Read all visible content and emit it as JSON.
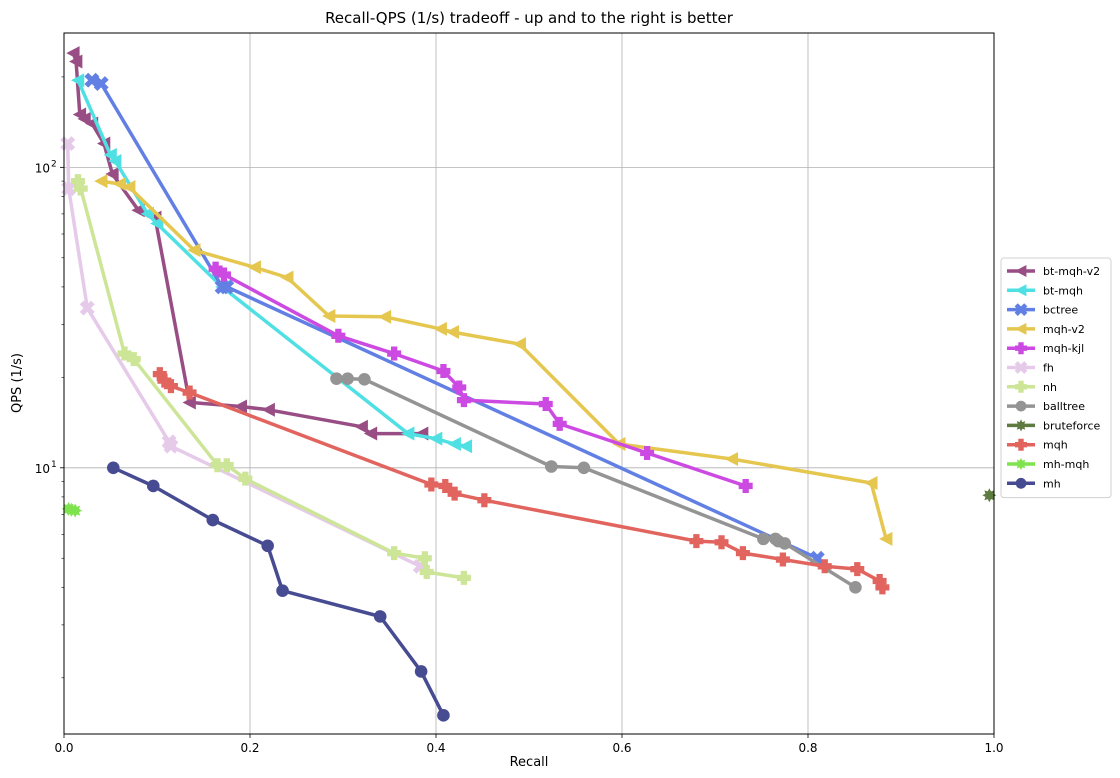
{
  "chart_data": {
    "type": "line",
    "title": "Recall-QPS (1/s) tradeoff - up and to the right is better",
    "xlabel": "Recall",
    "ylabel": "QPS (1/s)",
    "xlim": [
      0.0,
      1.0
    ],
    "ylim": [
      1.3,
      280
    ],
    "yscale": "log",
    "grid": true,
    "legend_position": "right",
    "x_ticks": [
      {
        "value": 0.0,
        "label": "0.0"
      },
      {
        "value": 0.2,
        "label": "0.2"
      },
      {
        "value": 0.4,
        "label": "0.4"
      },
      {
        "value": 0.6,
        "label": "0.6"
      },
      {
        "value": 0.8,
        "label": "0.8"
      },
      {
        "value": 1.0,
        "label": "1.0"
      }
    ],
    "y_ticks": [
      {
        "value": 10,
        "label": "10",
        "sup": "1"
      },
      {
        "value": 100,
        "label": "10",
        "sup": "2"
      }
    ],
    "series": [
      {
        "name": "bt-mqh-v2",
        "color": "#984e84",
        "marker": "triangle-left",
        "x": [
          0.01,
          0.013,
          0.017,
          0.022,
          0.03,
          0.043,
          0.052,
          0.08,
          0.09,
          0.098,
          0.135,
          0.19,
          0.22,
          0.32,
          0.33,
          0.385
        ],
        "y": [
          240,
          225,
          150,
          145,
          140,
          120,
          95,
          72,
          70,
          68,
          16.5,
          16.0,
          15.6,
          13.7,
          13.0,
          13.0
        ]
      },
      {
        "name": "bt-mqh",
        "color": "#4fe0e3",
        "marker": "triangle-left",
        "x": [
          0.015,
          0.05,
          0.055,
          0.09,
          0.1,
          0.17,
          0.37,
          0.4,
          0.42,
          0.432
        ],
        "y": [
          195,
          110,
          105,
          70,
          65,
          40,
          13.0,
          12.5,
          12.0,
          11.8
        ]
      },
      {
        "name": "bctree",
        "color": "#6280e4",
        "marker": "x",
        "x": [
          0.03,
          0.04,
          0.17,
          0.175,
          0.81
        ],
        "y": [
          195,
          190,
          40,
          40,
          5.0
        ]
      },
      {
        "name": "mqh-v2",
        "color": "#e5c750",
        "marker": "triangle-left",
        "x": [
          0.04,
          0.06,
          0.07,
          0.14,
          0.205,
          0.24,
          0.285,
          0.345,
          0.405,
          0.418,
          0.49,
          0.597,
          0.718,
          0.868,
          0.884
        ],
        "y": [
          90,
          88,
          86,
          53,
          46.5,
          43,
          32,
          31.8,
          29,
          28.3,
          25.8,
          12.0,
          10.7,
          8.9,
          5.8
        ]
      },
      {
        "name": "mqh-kjl",
        "color": "#cc49e2",
        "marker": "plus",
        "x": [
          0.163,
          0.172,
          0.295,
          0.355,
          0.408,
          0.425,
          0.43,
          0.518,
          0.533,
          0.627,
          0.733
        ],
        "y": [
          46,
          44,
          27.5,
          24,
          21,
          18.5,
          16.8,
          16.3,
          14,
          11.2,
          8.7
        ]
      },
      {
        "name": "fh",
        "color": "#e6cae9",
        "marker": "x",
        "x": [
          0.004,
          0.005,
          0.025,
          0.113,
          0.115,
          0.383
        ],
        "y": [
          120,
          85,
          34,
          12.2,
          11.8,
          4.7
        ]
      },
      {
        "name": "nh",
        "color": "#cde597",
        "marker": "plus",
        "x": [
          0.015,
          0.018,
          0.065,
          0.075,
          0.165,
          0.175,
          0.195,
          0.355,
          0.388,
          0.39,
          0.43
        ],
        "y": [
          90,
          85,
          24,
          23,
          10.2,
          10.2,
          9.2,
          5.2,
          5.0,
          4.5,
          4.3
        ]
      },
      {
        "name": "balltree",
        "color": "#949494",
        "marker": "circle",
        "x": [
          0.293,
          0.305,
          0.323,
          0.524,
          0.559,
          0.752,
          0.765,
          0.768,
          0.775,
          0.851
        ],
        "y": [
          19.8,
          19.8,
          19.7,
          10.1,
          10.0,
          5.8,
          5.8,
          5.7,
          5.6,
          4.0
        ]
      },
      {
        "name": "bruteforce",
        "color": "#5e7c41",
        "marker": "star",
        "x": [
          0.995
        ],
        "y": [
          8.1
        ]
      },
      {
        "name": "mqh",
        "color": "#e2645e",
        "marker": "plus",
        "x": [
          0.103,
          0.108,
          0.115,
          0.135,
          0.395,
          0.41,
          0.42,
          0.452,
          0.68,
          0.707,
          0.73,
          0.773,
          0.818,
          0.853,
          0.877,
          0.88
        ],
        "y": [
          20.5,
          19.5,
          18.7,
          17.8,
          8.8,
          8.7,
          8.2,
          7.8,
          5.7,
          5.65,
          5.2,
          4.95,
          4.7,
          4.6,
          4.2,
          4.0
        ]
      },
      {
        "name": "mh-mqh",
        "color": "#7ee34c",
        "marker": "star",
        "x": [
          0.005,
          0.008,
          0.012
        ],
        "y": [
          7.3,
          7.25,
          7.2
        ]
      },
      {
        "name": "mh",
        "color": "#474c92",
        "marker": "circle",
        "x": [
          0.053,
          0.096,
          0.16,
          0.219,
          0.235,
          0.34,
          0.384,
          0.408
        ],
        "y": [
          10.0,
          8.7,
          6.7,
          5.5,
          3.9,
          3.2,
          2.1,
          1.5
        ]
      }
    ]
  }
}
